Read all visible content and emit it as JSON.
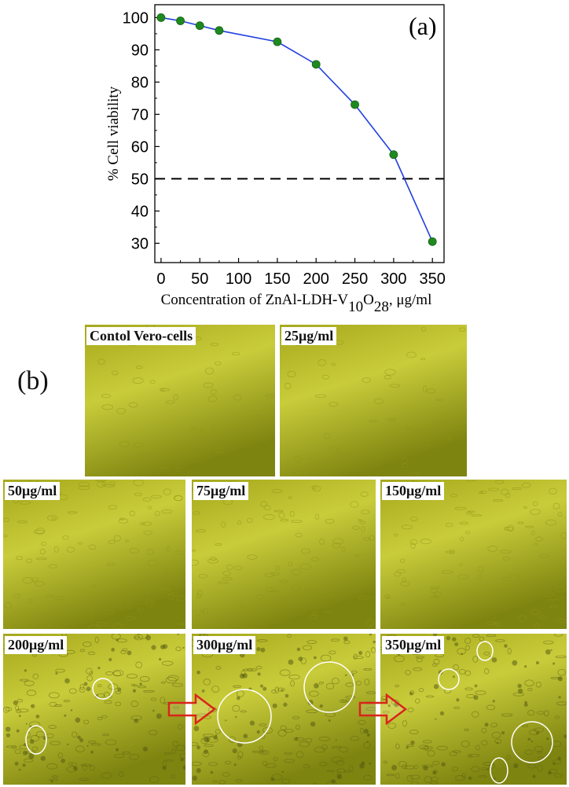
{
  "chart_data": {
    "type": "line",
    "panel_label": "(a)",
    "xlabel": "Concentration of ZnAl-LDH-V",
    "xlabel_sub1": "10",
    "xlabel_mid": "O",
    "xlabel_sub2": "28",
    "xlabel_unit": ", μg/ml",
    "ylabel": "% Cell viability",
    "x": [
      0,
      25,
      50,
      75,
      150,
      200,
      250,
      300,
      350
    ],
    "y": [
      100,
      99,
      97.5,
      96,
      92.5,
      85.5,
      73,
      57.5,
      30.5
    ],
    "xlim": [
      -8,
      365
    ],
    "ylim": [
      24,
      104
    ],
    "xticks": [
      "0",
      "50",
      "100",
      "150",
      "200",
      "250",
      "300",
      "350"
    ],
    "xtick_values": [
      0,
      50,
      100,
      150,
      200,
      250,
      300,
      350
    ],
    "yticks": [
      "30",
      "40",
      "50",
      "60",
      "70",
      "80",
      "90",
      "100"
    ],
    "ytick_values": [
      30,
      40,
      50,
      60,
      70,
      80,
      90,
      100
    ],
    "reference_line": 50,
    "line_color": "#1f3fe0",
    "marker_color": "#1e8a1e",
    "grid": false
  },
  "panel_b_label": "(b)",
  "micrographs": [
    {
      "label": "Contol Vero-cells"
    },
    {
      "label": "25μg/ml"
    },
    {
      "label": "50μg/ml"
    },
    {
      "label": "75μg/ml"
    },
    {
      "label": "150μg/ml"
    },
    {
      "label": "200μg/ml"
    },
    {
      "label": "300μg/ml"
    },
    {
      "label": "350μg/ml"
    }
  ],
  "colors": {
    "micrograph_base": "#a6a81c",
    "micrograph_light": "#c9cc3a",
    "micrograph_dark": "#7e8410",
    "arrow": "#d9241b",
    "circle": "#ffffff"
  }
}
